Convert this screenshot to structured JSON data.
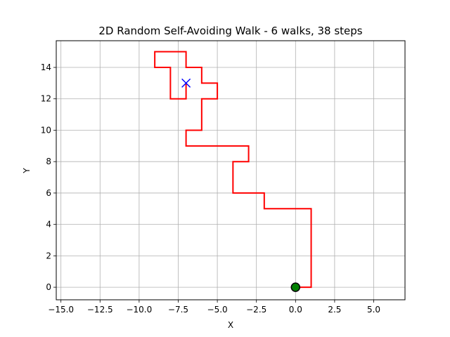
{
  "chart_data": {
    "type": "line",
    "title": "2D Random Self-Avoiding Walk - 6 walks, 38 steps",
    "xlabel": "X",
    "ylabel": "Y",
    "xlim": [
      -15.3,
      7
    ],
    "ylim": [
      -0.8,
      15.7
    ],
    "xticks": [
      -15.0,
      -12.5,
      -10.0,
      -7.5,
      -5.0,
      -2.5,
      0.0,
      2.5,
      5.0
    ],
    "xtick_labels": [
      "−15.0",
      "−12.5",
      "−10.0",
      "−7.5",
      "−5.0",
      "−2.5",
      "0.0",
      "2.5",
      "5.0"
    ],
    "yticks": [
      0,
      2,
      4,
      6,
      8,
      10,
      12,
      14
    ],
    "ytick_labels": [
      "0",
      "2",
      "4",
      "6",
      "8",
      "10",
      "12",
      "14"
    ],
    "grid": true,
    "series": [
      {
        "color": "#ff0000",
        "x": [
          0,
          1,
          1,
          -2,
          -2,
          -4,
          -4,
          -3,
          -3,
          -7,
          -7,
          -6,
          -6,
          -5,
          -5,
          -6,
          -6,
          -7,
          -7,
          -9,
          -9,
          -8,
          -8,
          -7,
          -7
        ],
        "y": [
          0,
          0,
          5,
          5,
          6,
          6,
          8,
          8,
          9,
          9,
          10,
          10,
          12,
          12,
          13,
          13,
          14,
          14,
          15,
          15,
          14,
          14,
          12,
          12,
          13
        ]
      }
    ],
    "start_marker": {
      "x": 0,
      "y": 0,
      "color": "#008000"
    },
    "end_marker": {
      "x": -7,
      "y": 13,
      "color": "#0000ff"
    }
  }
}
